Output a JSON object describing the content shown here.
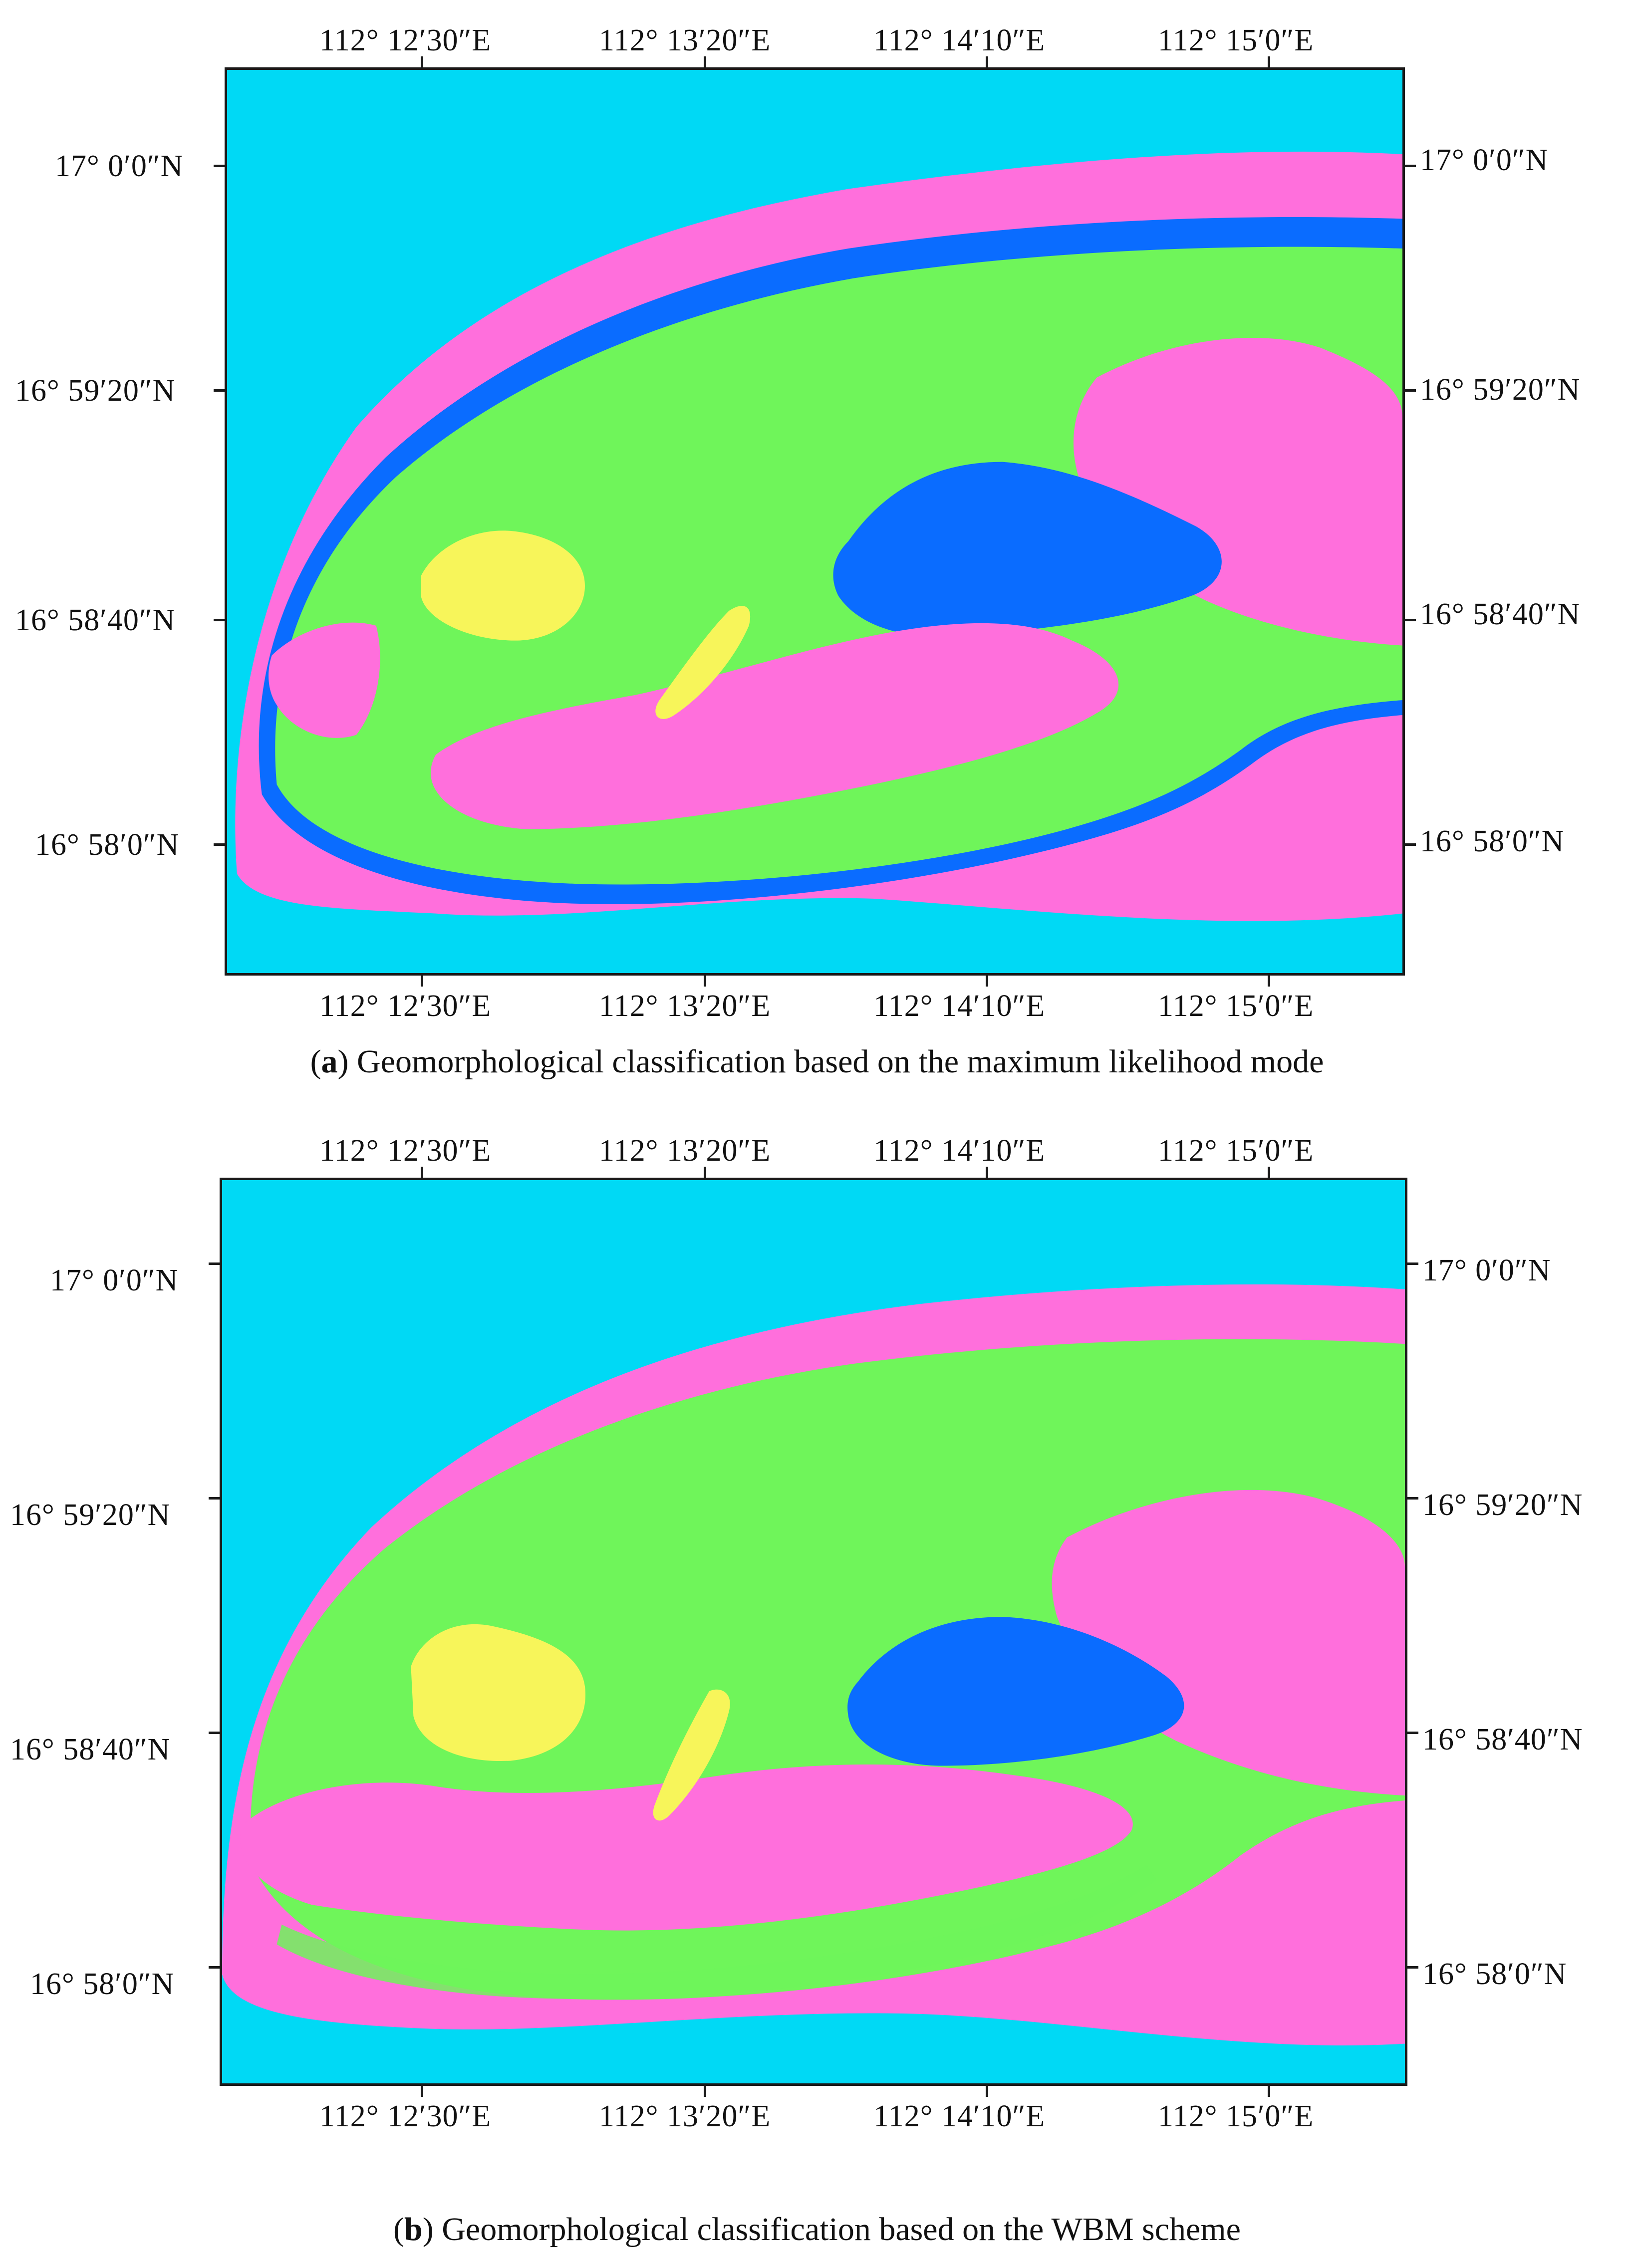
{
  "colors": {
    "sea": "#00d9f5",
    "class_pink": "#ff6fdc",
    "class_green": "#6ff55a",
    "class_blue": "#0a6cff",
    "class_yellow": "#f7f55a"
  },
  "panels": [
    {
      "id": "a",
      "caption_letter": "a",
      "caption_text": " Geomorphological classification based on the maximum likelihood mode",
      "top_labels": [
        "112°  12′30″E",
        "112°  13′20″E",
        "112°  14′10″E",
        "112°  15′0″E"
      ],
      "bottom_labels": [
        "112°  12′30″E",
        "112°  13′20″E",
        "112°  14′10″E",
        "112°  15′0″E"
      ],
      "left_labels": [
        "17°  0′0″N",
        "16°  59′20″N",
        "16°  58′40″N",
        "16°  58′0″N"
      ],
      "right_labels": [
        "17°  0′0″N",
        "16°  59′20″N",
        "16°  58′40″N",
        "16°  58′0″N"
      ]
    },
    {
      "id": "b",
      "caption_letter": "b",
      "caption_text": " Geomorphological classification based on the WBM scheme",
      "top_labels": [
        "112°  12′30″E",
        "112°  13′20″E",
        "112°  14′10″E",
        "112°  15′0″E"
      ],
      "bottom_labels": [
        "112°  12′30″E",
        "112°  13′20″E",
        "112°  14′10″E",
        "112°  15′0″E"
      ],
      "left_labels": [
        "17°  0′0″N",
        "16°  59′20″N",
        "16°  58′40″N",
        "16°  58′0″N"
      ],
      "right_labels": [
        "17°  0′0″N",
        "16°  59′20″N",
        "16°  58′40″N",
        "16°  58′0″N"
      ]
    }
  ]
}
